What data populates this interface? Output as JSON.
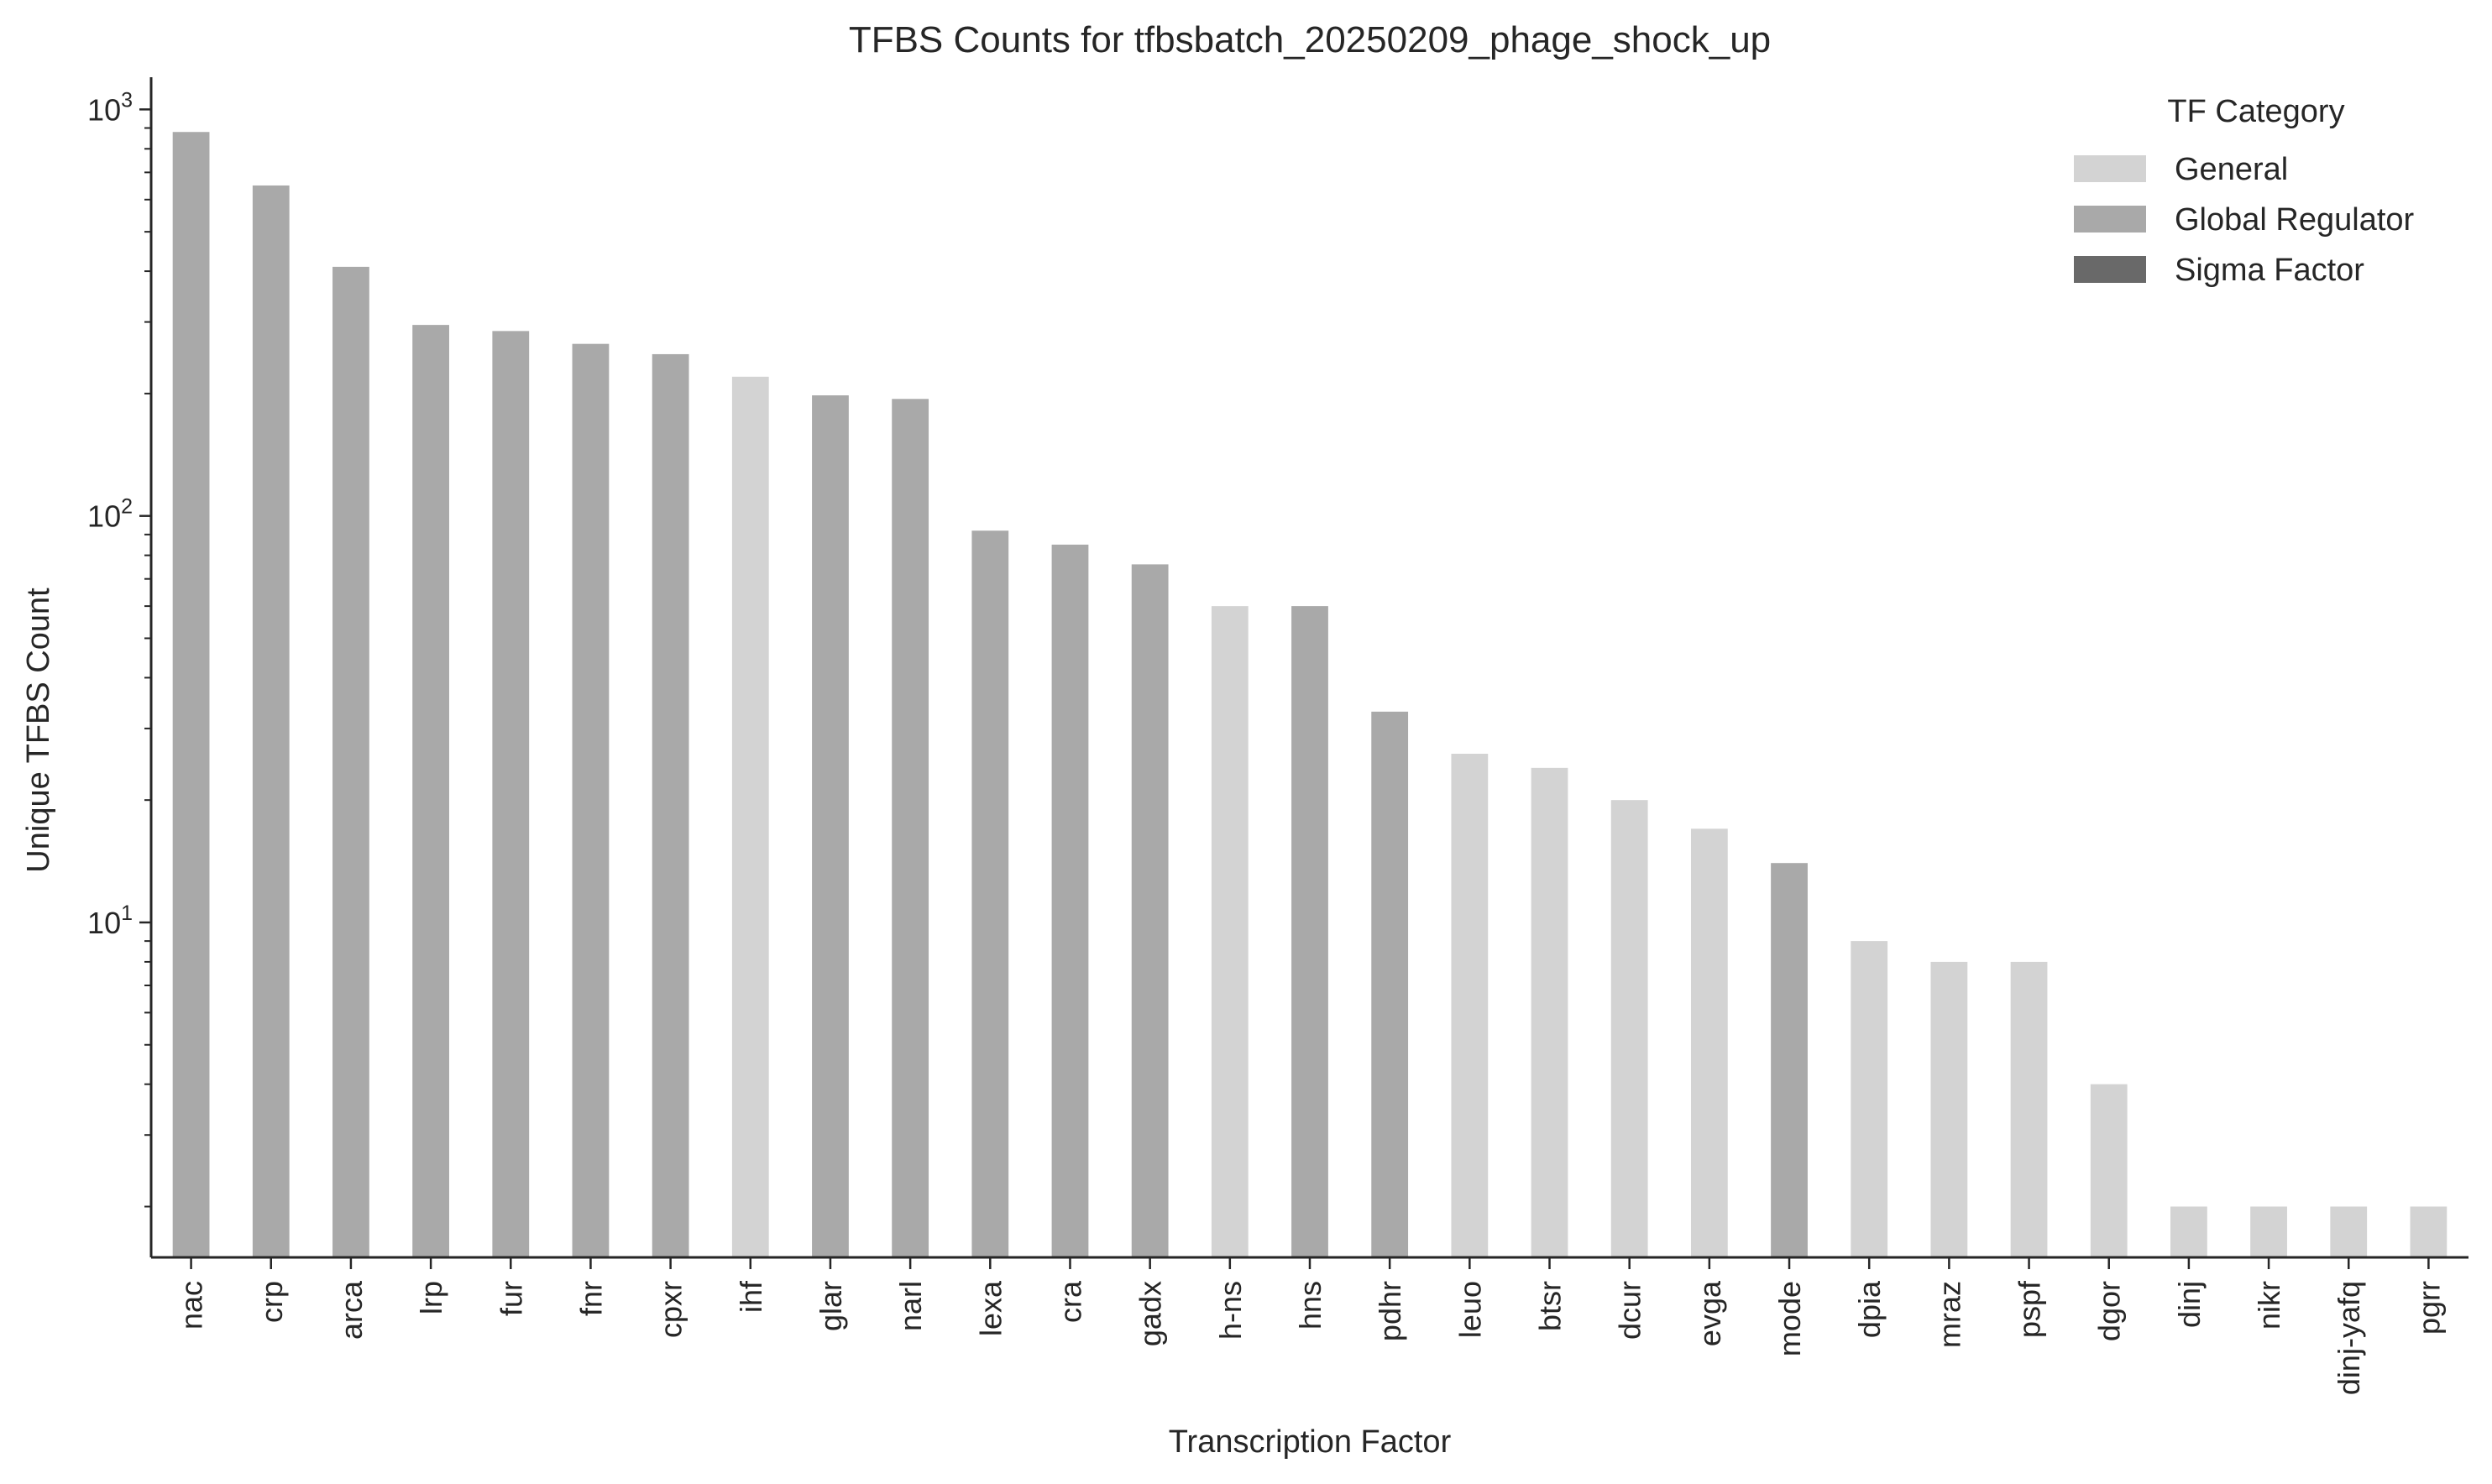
{
  "chart_data": {
    "type": "bar",
    "title": "TFBS Counts for tfbsbatch_20250209_phage_shock_up",
    "xlabel": "Transcription Factor",
    "ylabel": "Unique TFBS Count",
    "yscale": "log",
    "ylim": [
      1.5,
      1200
    ],
    "yticks": [
      {
        "value": 10,
        "base": "10",
        "exp": "1"
      },
      {
        "value": 100,
        "base": "10",
        "exp": "2"
      },
      {
        "value": 1000,
        "base": "10",
        "exp": "3"
      }
    ],
    "grid": false,
    "legend": {
      "title": "TF Category",
      "position": "top-right",
      "entries": [
        {
          "name": "General",
          "color": "#d3d3d3"
        },
        {
          "name": "Global Regulator",
          "color": "#a9a9a9"
        },
        {
          "name": "Sigma Factor",
          "color": "#696969"
        }
      ]
    },
    "categories": [
      "nac",
      "crp",
      "arca",
      "lrp",
      "fur",
      "fnr",
      "cpxr",
      "ihf",
      "glar",
      "narl",
      "lexa",
      "cra",
      "gadx",
      "h-ns",
      "hns",
      "pdhr",
      "leuo",
      "btsr",
      "dcur",
      "evga",
      "mode",
      "dpia",
      "mraz",
      "pspf",
      "dgor",
      "dinj",
      "nikr",
      "dinj-yafq",
      "pgrr"
    ],
    "values": [
      880,
      650,
      410,
      295,
      285,
      265,
      250,
      220,
      198,
      194,
      92,
      85,
      76,
      60,
      60,
      33,
      26,
      24,
      20,
      17,
      14,
      9,
      8,
      8,
      4,
      2,
      2,
      2,
      2
    ],
    "bar_categories": [
      "Global Regulator",
      "Global Regulator",
      "Global Regulator",
      "Global Regulator",
      "Global Regulator",
      "Global Regulator",
      "Global Regulator",
      "General",
      "Global Regulator",
      "Global Regulator",
      "Global Regulator",
      "Global Regulator",
      "Global Regulator",
      "General",
      "Global Regulator",
      "Global Regulator",
      "General",
      "General",
      "General",
      "General",
      "Global Regulator",
      "General",
      "General",
      "General",
      "General",
      "General",
      "General",
      "General",
      "General"
    ]
  }
}
